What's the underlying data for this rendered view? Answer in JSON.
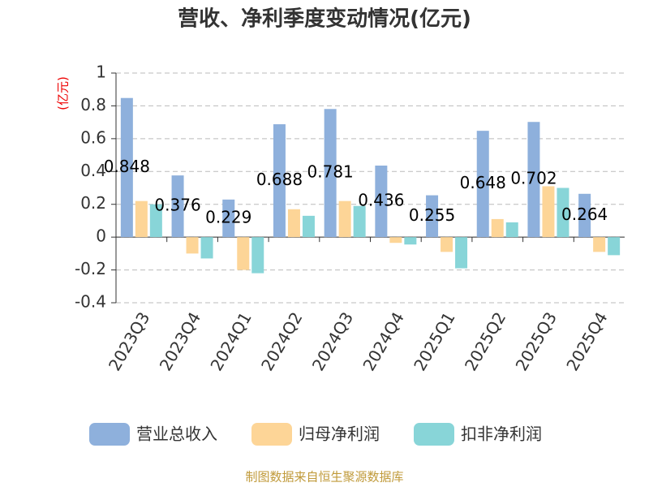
{
  "chart_data": {
    "type": "bar",
    "title": "营收、净利季度变动情况(亿元)",
    "y_label": "(亿元)",
    "categories": [
      "2023Q3",
      "2023Q4",
      "2024Q1",
      "2024Q2",
      "2024Q3",
      "2024Q4",
      "2025Q1",
      "2025Q2",
      "2025Q3",
      "2025Q4"
    ],
    "series": [
      {
        "name": "营业总收入",
        "color": "#8eb0dc",
        "values": [
          0.848,
          0.376,
          0.229,
          0.688,
          0.781,
          0.436,
          0.255,
          0.648,
          0.702,
          0.264
        ],
        "show_labels": true
      },
      {
        "name": "归母净利润",
        "color": "#fdd597",
        "values": [
          0.22,
          -0.1,
          -0.2,
          0.17,
          0.22,
          -0.035,
          -0.09,
          0.11,
          0.31,
          -0.09
        ]
      },
      {
        "name": "扣非净利润",
        "color": "#88d5d8",
        "values": [
          0.2,
          -0.13,
          -0.22,
          0.13,
          0.19,
          -0.045,
          -0.19,
          0.09,
          0.3,
          -0.11
        ]
      }
    ],
    "ylim": [
      -0.4,
      1
    ],
    "yticks": [
      1,
      0.8,
      0.6,
      0.4,
      0.2,
      0,
      -0.2,
      -0.4
    ],
    "grid": true,
    "source": "制图数据来自恒生聚源数据库"
  }
}
